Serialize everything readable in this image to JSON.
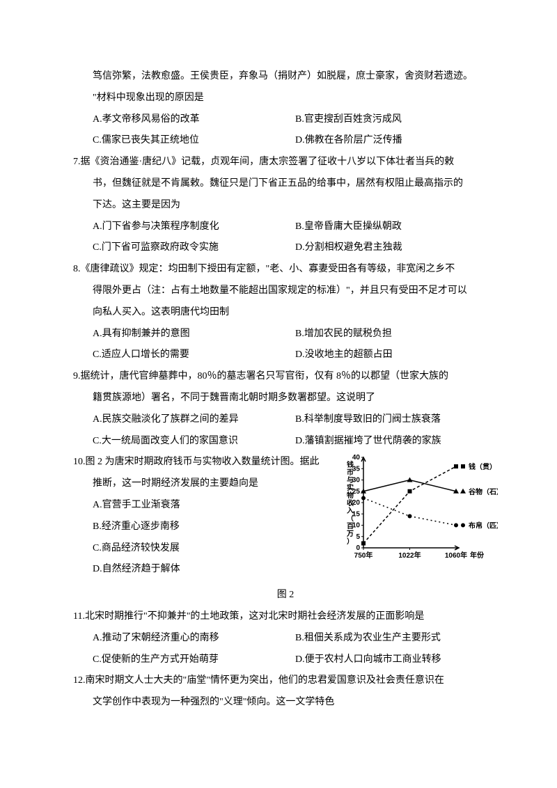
{
  "intro_tail": {
    "l1": "笃信弥繁，法教愈盛。王侯贵臣，弃象马（捐财产）如脱屣，庶士豪家，舍资财若遗迹。",
    "l2": "\"材料中现象出现的原因是",
    "a": "A.孝文帝移风易俗的改革",
    "b": "B.官吏搜刮百姓贪污成风",
    "c": "C.儒家已丧失其正统地位",
    "d": "D.佛教在各阶层广泛传播"
  },
  "q7": {
    "l1": "7.据《资治通鉴·唐纪八》记载，贞观年间，唐太宗签署了征收十八岁以下体壮者当兵的敕",
    "l2": "书，但魏征就是不肯属敕。魏征只是门下省正五品的给事中，居然有权阻止最高指示的",
    "l3": "下达。这主要是因为",
    "a": "A.门下省参与决策程序制度化",
    "b": "B.皇帝昏庸大臣操纵朝政",
    "c": "C.门下省可监察政府政令实施",
    "d": "D.分割相权避免君主独裁"
  },
  "q8": {
    "l1": "8.《唐律疏议》规定：均田制下授田有定额，\"老、小、寡妻受田各有等级，非宽闲之乡不",
    "l2": "得限外更占（注：占有土地数量不能超出国家规定的标准）\"，并且只有受田不足才可以",
    "l3": "向私人买入。这表明唐代均田制",
    "a": "A.具有抑制兼并的意图",
    "b": "B.增加农民的赋税负担",
    "c": "C.适应人口增长的需要",
    "d": "D.没收地主的超额占田"
  },
  "q9": {
    "l1": "9.据统计，唐代官绅墓葬中，80％的墓志署名只写官衔，仅有 8％的以郡望（世家大族的",
    "l2": "籍贯族源地）署名，不同于魏晋南北朝时期多数署郡望。这说明了",
    "a": "A.民族交融淡化了族群之间的差异",
    "b": "B.科举制度导致旧的门阀士族衰落",
    "c": "C.大一统局面改变人们的家国意识",
    "d": "D.藩镇割据摧垮了世代荫袭的家族"
  },
  "q10": {
    "l1": "10.图 2 为唐宋时期政府钱币与实物收入数量统计图。据此",
    "l2": "推断，这一时期经济发展的主要趋向是",
    "a": "A.官营手工业渐衰落",
    "b": "B.经济重心逐步南移",
    "c": "C.商品经济较快发展",
    "d": "D.自然经济趋于解体",
    "caption": "图 2"
  },
  "q11": {
    "l1": "11.北宋时期推行\"不抑兼并\"的土地政策，这对北宋时期社会经济发展的正面影响是",
    "a": "A.推动了宋朝经济重心的南移",
    "b": "B.租佃关系成为农业生产主要形式",
    "c": "C.促使新的生产方式开始萌芽",
    "d": "D.便于农村人口向城市工商业转移"
  },
  "q12": {
    "l1": "12.南宋时期文人士大夫的\"庙堂\"情怀更为突出，他们的忠君爱国意识及社会责任意识在",
    "l2": "文学创作中表现为一种强烈的\"义理\"倾向。这一文学特色"
  },
  "chart": {
    "y_title": "钱币与实物收入（百万）",
    "y_ticks": [
      0,
      5,
      10,
      15,
      20,
      25,
      30,
      35,
      40
    ],
    "x_ticks": [
      "750年",
      "1022年",
      "1060年"
    ],
    "x_title": "年份",
    "legend": {
      "coin": "钱（贯）",
      "grain": "谷物（石）",
      "cloth": "布帛（匹）"
    },
    "series": {
      "coin": {
        "marker": "square",
        "color": "#000",
        "dash": "4,3",
        "values": [
          2,
          25,
          36
        ]
      },
      "grain": {
        "marker": "triangle",
        "color": "#000",
        "dash": "none",
        "values": [
          25,
          30,
          25
        ]
      },
      "cloth": {
        "marker": "circle",
        "color": "#000",
        "dash": "2,4",
        "values": [
          22,
          14,
          10
        ]
      }
    },
    "axis_color": "#000",
    "font_size": 10,
    "y_title_font_size": 10,
    "ylim": [
      0,
      40
    ]
  }
}
